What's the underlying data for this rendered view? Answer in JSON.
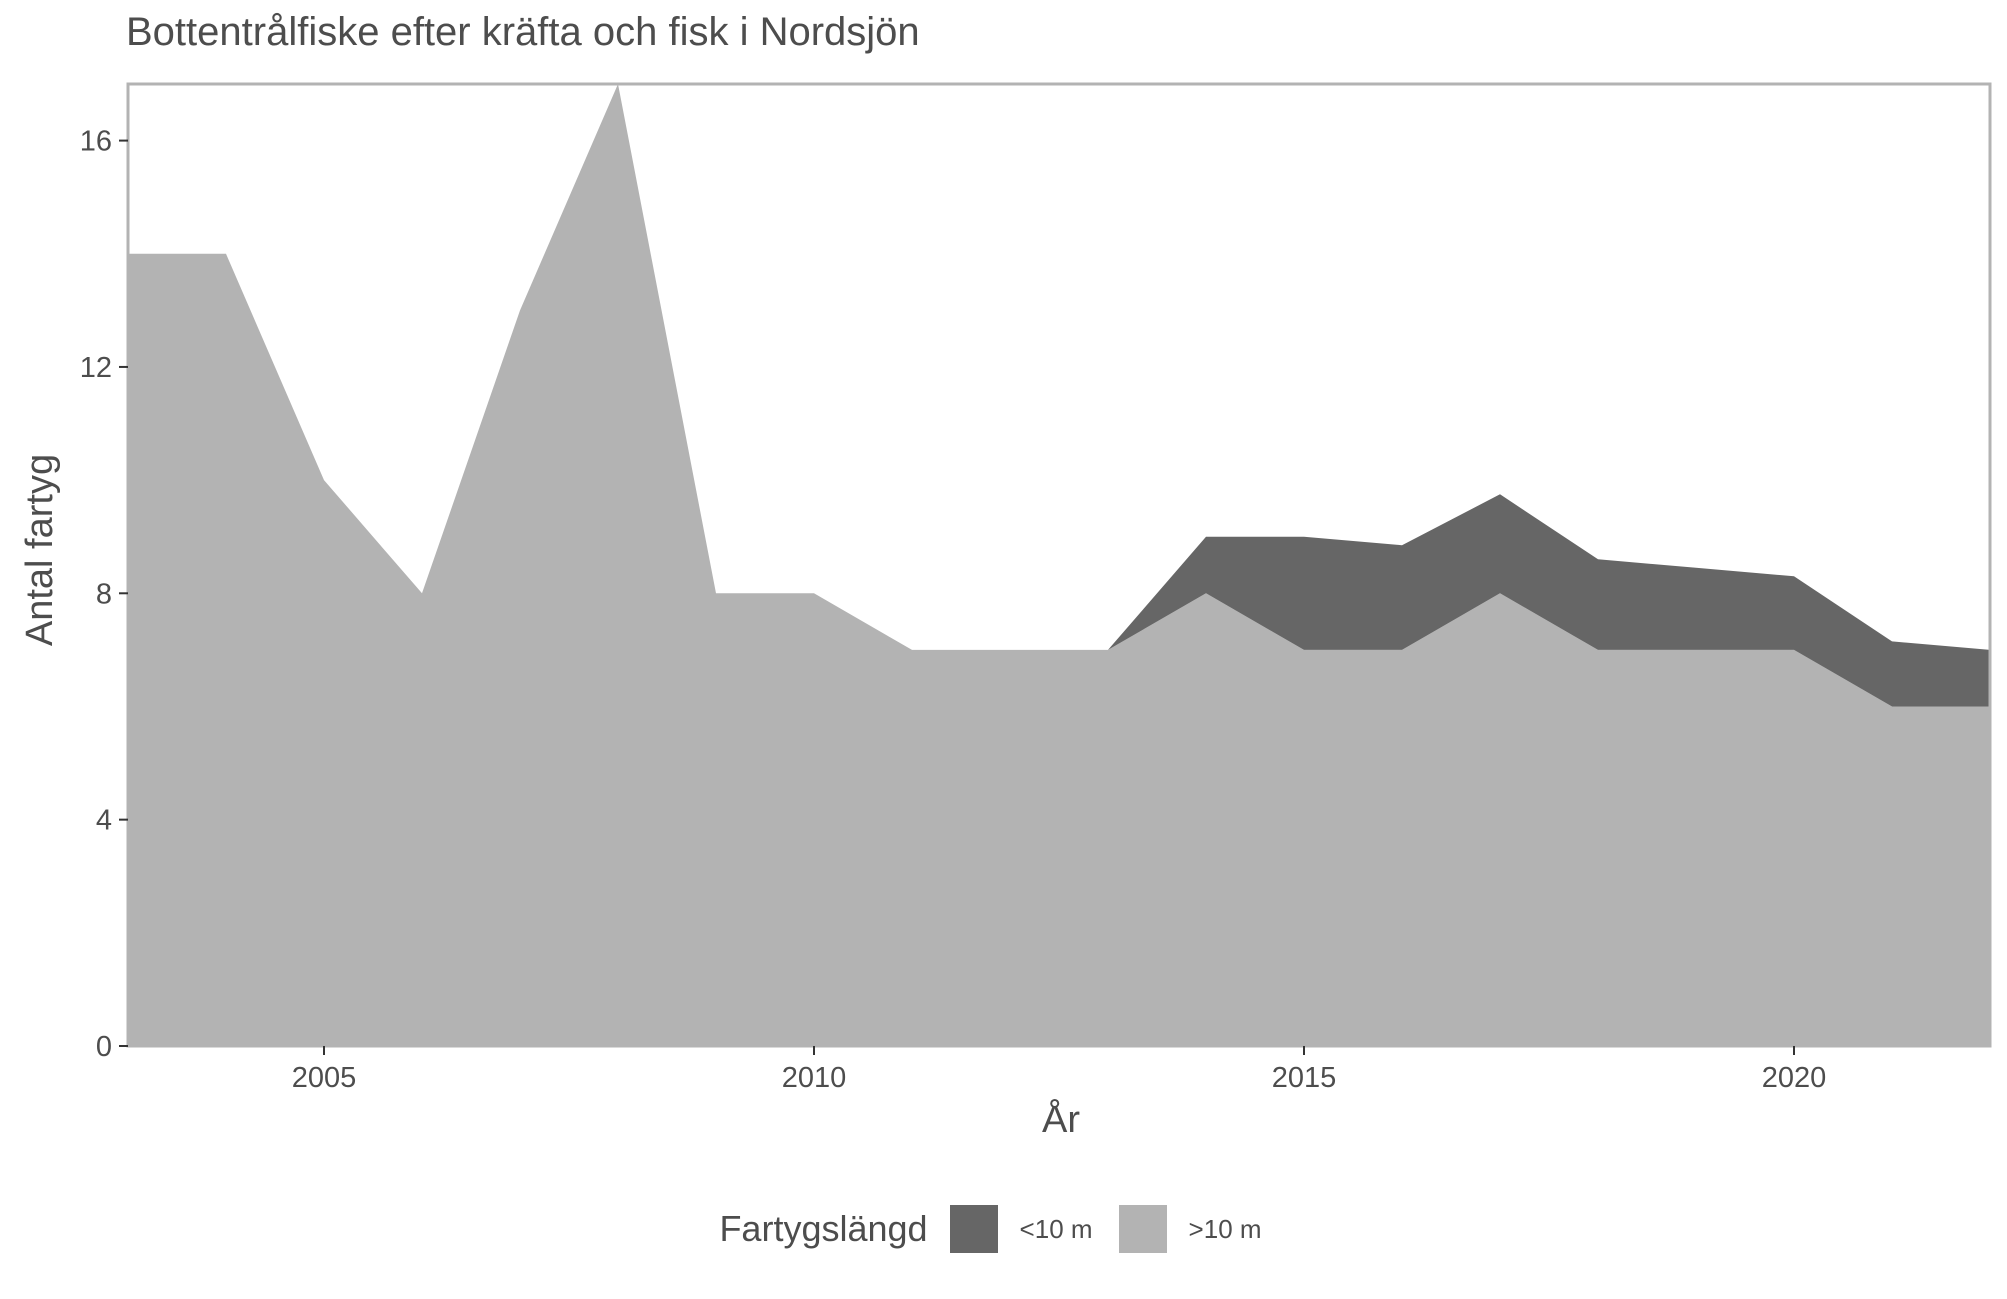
{
  "chart_data": {
    "type": "area",
    "stacked": true,
    "title": "Bottentrålfiske efter kräfta och fisk i Nordsjön",
    "xlabel": "År",
    "ylabel": "Antal fartyg",
    "xlim": [
      2003,
      2022
    ],
    "ylim": [
      0,
      17
    ],
    "x_ticks": [
      2005,
      2010,
      2015,
      2020
    ],
    "y_ticks": [
      0,
      4,
      8,
      12,
      16
    ],
    "grid": false,
    "legend_position": "bottom",
    "legend_title": "Fartygslängd",
    "x": [
      2003,
      2004,
      2005,
      2006,
      2007,
      2008,
      2009,
      2010,
      2011,
      2012,
      2013,
      2014,
      2015,
      2016,
      2017,
      2018,
      2019,
      2020,
      2021,
      2022
    ],
    "series": [
      {
        "name": ">10 m",
        "color": "#b3b3b3",
        "values": [
          14,
          14,
          10,
          8,
          13,
          17,
          8,
          8,
          7,
          7,
          7,
          8,
          7,
          7,
          8,
          7,
          7,
          7,
          6,
          6
        ]
      },
      {
        "name": "<10 m",
        "color": "#666666",
        "values": [
          0,
          0,
          0,
          0,
          0,
          0,
          0,
          0,
          0,
          0,
          0,
          1,
          2,
          1.85,
          1.75,
          1.6,
          1.45,
          1.3,
          1.15,
          1
        ]
      }
    ]
  }
}
